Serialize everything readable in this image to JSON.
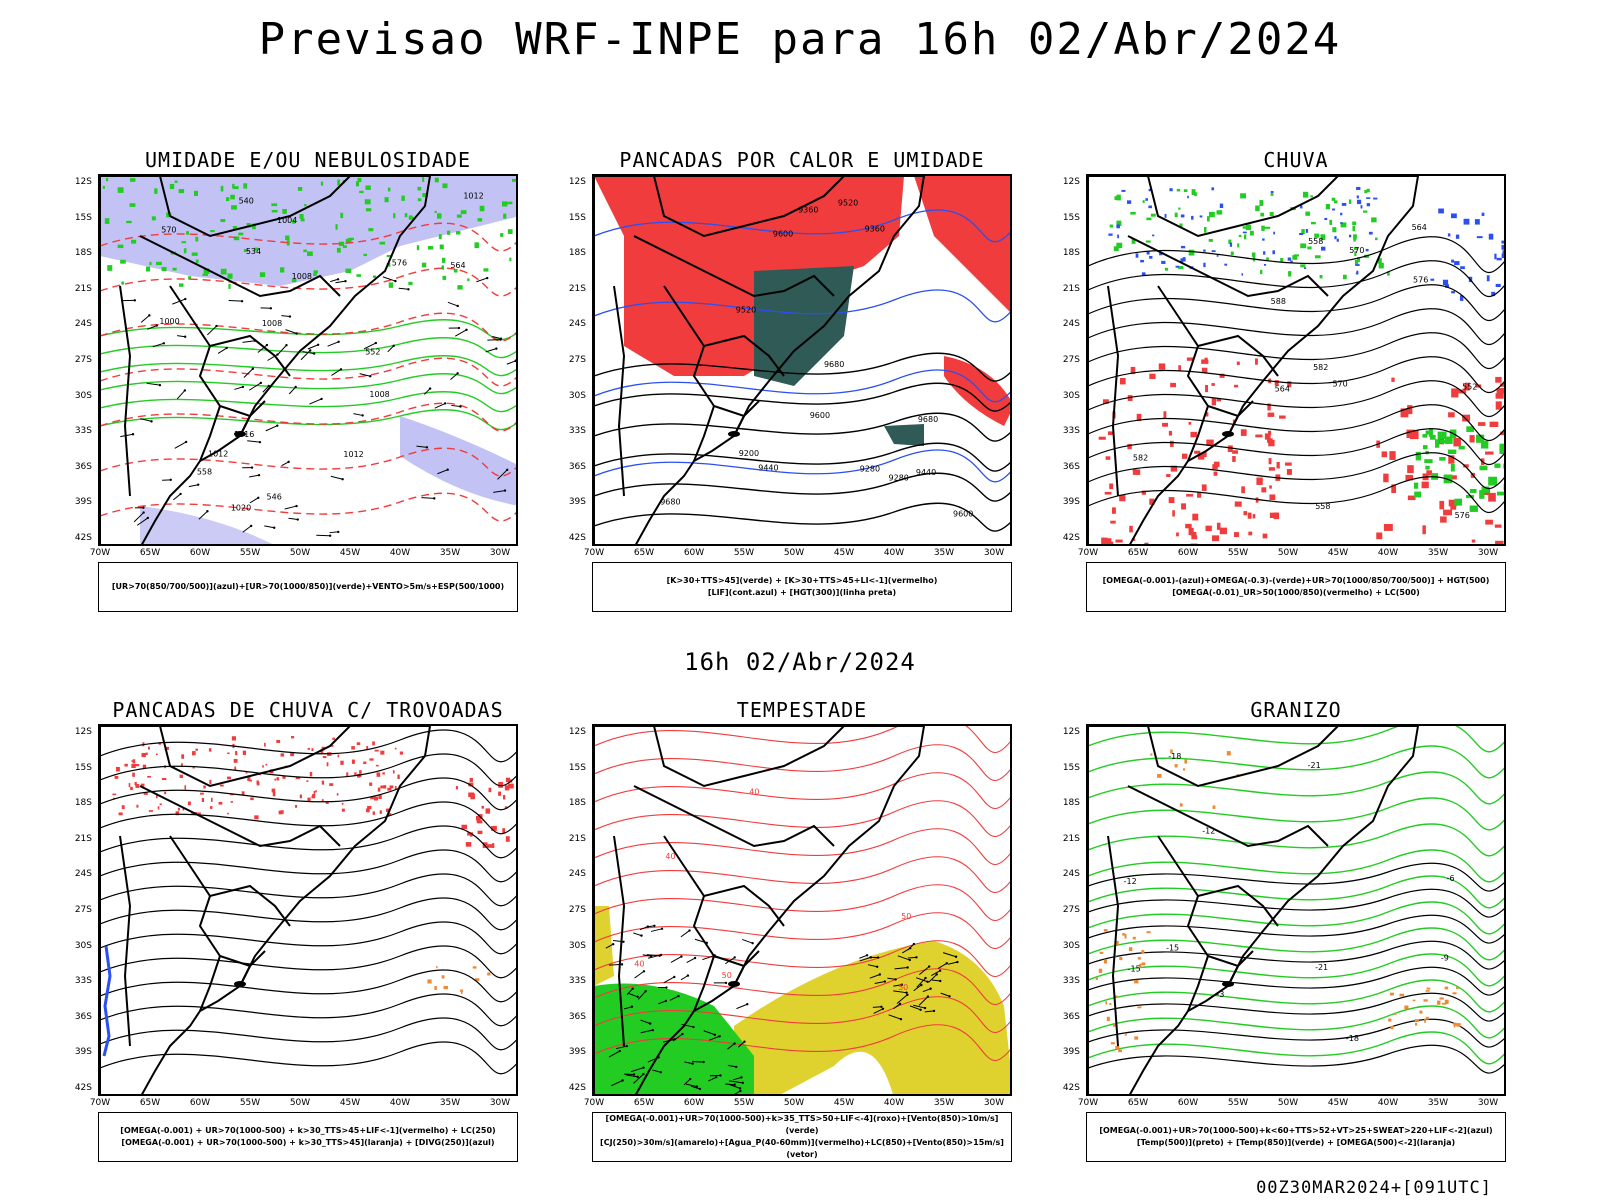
{
  "title": "Previsao WRF-INPE  para 16h 02/Abr/2024",
  "subtitle": "16h 02/Abr/2024",
  "footer": "00Z30MAR2024+[091UTC]",
  "lat_ticks": [
    "12S",
    "15S",
    "18S",
    "21S",
    "24S",
    "27S",
    "30S",
    "33S",
    "36S",
    "39S",
    "42S"
  ],
  "lon_ticks": [
    "70W",
    "65W",
    "60W",
    "55W",
    "50W",
    "45W",
    "40W",
    "35W",
    "30W"
  ],
  "colors": {
    "red": "#f03c3c",
    "green": "#22cc22",
    "blue": "#2b4ff0",
    "purple": "#a8a8f0",
    "darkteal": "#2f5a55",
    "yellow": "#e0d22e",
    "orange": "#ee8833",
    "black": "#000000"
  },
  "panels": [
    {
      "title": "UMIDADE E/OU NEBULOSIDADE",
      "legend": [
        "[UR>70(850/700/500)](azul)+[UR>70(1000/850)](verde)+VENTO>5m/s+ESP(500/1000)"
      ],
      "labels": [
        "1008",
        "1008",
        "1008",
        "1012",
        "1012",
        "1012",
        "1016",
        "1020",
        "576",
        "570",
        "564",
        "558",
        "552",
        "546",
        "540",
        "534",
        "1000",
        "1004"
      ]
    },
    {
      "title": "PANCADAS POR CALOR E UMIDADE",
      "legend": [
        "[K>30+TTS>45](verde) + [K>30+TTS>45+LI<-1](vermelho)",
        "[LIF](cont.azul) + [HGT(300)](linha preta)"
      ],
      "labels": [
        "9680",
        "9680",
        "9680",
        "9600",
        "9600",
        "9520",
        "9440",
        "9360",
        "9280",
        "9200",
        "9600",
        "9520",
        "9440",
        "9360",
        "9280"
      ]
    },
    {
      "title": "CHUVA",
      "legend": [
        "[OMEGA(-0.001)-(azul)+OMEGA(-0.3)-(verde)+UR>70(1000/850/700/500)] + HGT(500)",
        "[OMEGA(-0.01)_UR>50(1000/850)(vermelho) + LC(500)"
      ],
      "labels": [
        "588",
        "582",
        "582",
        "576",
        "570",
        "564",
        "558",
        "552",
        "576",
        "570",
        "564",
        "558"
      ]
    },
    {
      "title": "PANCADAS DE CHUVA C/ TROVOADAS",
      "legend": [
        "[OMEGA(-0.001) + UR>70(1000-500) + k>30_TTS>45+LIF<-1](vermelho) + LC(250)",
        "[OMEGA(-0.001) + UR>70(1000-500) + k>30_TTS>45](laranja) + [DIVG(250)](azul)"
      ],
      "labels": []
    },
    {
      "title": "TEMPESTADE",
      "legend": [
        "[OMEGA(-0.001)+UR>70(1000-500)+k>35_TTS>50+LIF<-4](roxo)+[Vento(850)>10m/s](verde)",
        "[CJ(250)>30m/s](amarelo)+[Agua_P(40-60mm)](vermelho)+LC(850)+[Vento(850)>15m/s](vetor)"
      ],
      "labels": [
        "50",
        "50",
        "40",
        "40",
        "50",
        "40"
      ]
    },
    {
      "title": "GRANIZO",
      "legend": [
        "[OMEGA(-0.001)+UR>70(1000-500)+k<60+TTS>52+VT>25+SWEAT>220+LIF<-2](azul)",
        "[Temp(500)](preto) + [Temp(850)](verde) + [OMEGA(500)<-2](laranja)"
      ],
      "labels": [
        "-3",
        "-6",
        "-9",
        "-12",
        "-15",
        "-18",
        "-21",
        "-12",
        "-15",
        "-18",
        "-21"
      ]
    }
  ]
}
